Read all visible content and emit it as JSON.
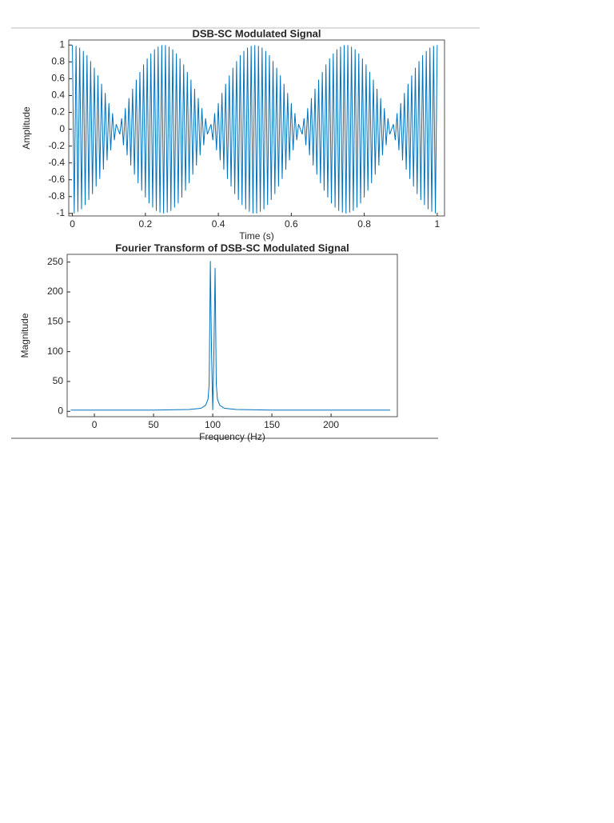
{
  "chart_data": [
    {
      "type": "line",
      "title": "DSB-SC Modulated Signal",
      "xlabel": "Time (s)",
      "ylabel": "Amplitude",
      "xlim": [
        -0.01,
        1.02
      ],
      "ylim": [
        -1.03,
        1.06
      ],
      "xticks": [
        0,
        0.2,
        0.4,
        0.6,
        0.8,
        1
      ],
      "yticks": [
        -1,
        -0.8,
        -0.6,
        -0.4,
        -0.2,
        0,
        0.2,
        0.4,
        0.6,
        0.8,
        1
      ],
      "grid": false,
      "x": [
        0,
        0.005,
        0.01,
        0.015,
        0.02,
        0.025,
        0.03,
        0.035,
        0.04,
        0.045,
        0.05,
        0.055,
        0.06,
        0.065,
        0.07,
        0.075,
        0.08,
        0.085,
        0.09,
        0.095,
        0.1,
        0.105,
        0.11,
        0.115,
        0.12,
        0.125,
        0.13,
        0.135,
        0.14,
        0.145,
        0.15,
        0.155,
        0.16,
        0.165,
        0.17,
        0.175,
        0.18,
        0.185,
        0.19,
        0.195,
        0.2,
        0.205,
        0.21,
        0.215,
        0.22,
        0.225,
        0.23,
        0.235,
        0.24,
        0.245,
        0.25,
        0.255,
        0.26,
        0.265,
        0.27,
        0.275,
        0.28,
        0.285,
        0.29,
        0.295,
        0.3,
        0.305,
        0.31,
        0.315,
        0.32,
        0.325,
        0.33,
        0.335,
        0.34,
        0.345,
        0.35,
        0.355,
        0.36,
        0.365,
        0.37,
        0.375,
        0.38,
        0.385,
        0.39,
        0.395,
        0.4,
        0.405,
        0.41,
        0.415,
        0.42,
        0.425,
        0.43,
        0.435,
        0.44,
        0.445,
        0.45,
        0.455,
        0.46,
        0.465,
        0.47,
        0.475,
        0.48,
        0.485,
        0.49,
        0.495,
        0.5,
        0.505,
        0.51,
        0.515,
        0.52,
        0.525,
        0.53,
        0.535,
        0.54,
        0.545,
        0.55,
        0.555,
        0.56,
        0.565,
        0.57,
        0.575,
        0.58,
        0.585,
        0.59,
        0.595,
        0.6,
        0.605,
        0.61,
        0.615,
        0.62,
        0.625,
        0.63,
        0.635,
        0.64,
        0.645,
        0.65,
        0.655,
        0.66,
        0.665,
        0.67,
        0.675,
        0.68,
        0.685,
        0.69,
        0.695,
        0.7,
        0.705,
        0.71,
        0.715,
        0.72,
        0.725,
        0.73,
        0.735,
        0.74,
        0.745,
        0.75,
        0.755,
        0.76,
        0.765,
        0.77,
        0.775,
        0.78,
        0.785,
        0.79,
        0.795,
        0.8,
        0.805,
        0.81,
        0.815,
        0.82,
        0.825,
        0.83,
        0.835,
        0.84,
        0.845,
        0.85,
        0.855,
        0.86,
        0.865,
        0.87,
        0.875,
        0.88,
        0.885,
        0.89,
        0.895,
        0.9,
        0.905,
        0.91,
        0.915,
        0.92,
        0.925,
        0.93,
        0.935,
        0.94,
        0.945,
        0.95,
        0.955,
        0.96,
        0.965,
        0.97,
        0.975,
        0.98,
        0.985,
        0.99,
        0.995,
        1
      ],
      "series": [
        {
          "color": "#0072bd",
          "values": [
            1,
            -1,
            0.99,
            -0.98,
            0.97,
            -0.95,
            0.93,
            -0.9,
            0.88,
            -0.84,
            0.81,
            -0.77,
            0.73,
            -0.68,
            0.64,
            -0.59,
            0.54,
            -0.48,
            0.43,
            -0.37,
            0.31,
            -0.25,
            0.19,
            -0.13,
            0.06,
            0,
            -0.06,
            0.13,
            -0.19,
            0.25,
            -0.31,
            0.37,
            -0.43,
            0.48,
            -0.54,
            0.59,
            -0.64,
            0.68,
            -0.73,
            0.77,
            -0.81,
            0.84,
            -0.88,
            0.9,
            -0.93,
            0.95,
            -0.97,
            0.98,
            -0.99,
            1,
            -1,
            1,
            -0.99,
            0.98,
            -0.97,
            0.95,
            -0.93,
            0.9,
            -0.88,
            0.84,
            -0.81,
            0.77,
            -0.73,
            0.68,
            -0.64,
            0.59,
            -0.54,
            0.48,
            -0.43,
            0.37,
            -0.31,
            0.25,
            -0.19,
            0.13,
            -0.06,
            0,
            0.06,
            -0.13,
            0.19,
            -0.25,
            0.31,
            -0.37,
            0.43,
            -0.48,
            0.54,
            -0.59,
            0.64,
            -0.68,
            0.73,
            -0.77,
            0.81,
            -0.84,
            0.88,
            -0.9,
            0.93,
            -0.95,
            0.97,
            -0.98,
            0.99,
            -1,
            1,
            -1,
            0.99,
            -0.98,
            0.97,
            -0.95,
            0.93,
            -0.9,
            0.88,
            -0.84,
            0.81,
            -0.77,
            0.73,
            -0.68,
            0.64,
            -0.59,
            0.54,
            -0.48,
            0.43,
            -0.37,
            0.31,
            -0.25,
            0.19,
            -0.13,
            0.06,
            0,
            -0.06,
            0.13,
            -0.19,
            0.25,
            -0.31,
            0.37,
            -0.43,
            0.48,
            -0.54,
            0.59,
            -0.64,
            0.68,
            -0.73,
            0.77,
            -0.81,
            0.84,
            -0.88,
            0.9,
            -0.93,
            0.95,
            -0.97,
            0.98,
            -0.99,
            1,
            -1,
            1,
            -0.99,
            0.98,
            -0.97,
            0.95,
            -0.93,
            0.9,
            -0.88,
            0.84,
            -0.81,
            0.77,
            -0.73,
            0.68,
            -0.64,
            0.59,
            -0.54,
            0.48,
            -0.43,
            0.37,
            -0.31,
            0.25,
            -0.19,
            0.13,
            -0.06,
            0,
            0.06,
            -0.13,
            0.19,
            -0.25,
            0.31,
            -0.37,
            0.43,
            -0.48,
            0.54,
            -0.59,
            0.64,
            -0.68,
            0.73,
            -0.77,
            0.81,
            -0.84,
            0.88,
            -0.9,
            0.93,
            -0.95,
            0.97,
            -0.98,
            0.99,
            -1,
            1
          ]
        }
      ]
    },
    {
      "type": "line",
      "title": "Fourier Transform of DSB-SC Modulated Signal",
      "xlabel": "Frequency (Hz)",
      "ylabel": "Magnitude",
      "xlim": [
        -23,
        256
      ],
      "ylim": [
        -9,
        263
      ],
      "xticks": [
        0,
        50,
        100,
        150,
        200
      ],
      "yticks": [
        0,
        50,
        100,
        150,
        200,
        250
      ],
      "grid": false,
      "x": [
        -20,
        0,
        50,
        80,
        90,
        94,
        96,
        97,
        98,
        99,
        100,
        101,
        102,
        103,
        104,
        106,
        110,
        120,
        150,
        200,
        250
      ],
      "series": [
        {
          "color": "#0072bd",
          "values": [
            2,
            2,
            2,
            3,
            5,
            10,
            20,
            45,
            252,
            100,
            2,
            100,
            240,
            45,
            20,
            10,
            5,
            3,
            2,
            2,
            2
          ]
        }
      ]
    }
  ]
}
